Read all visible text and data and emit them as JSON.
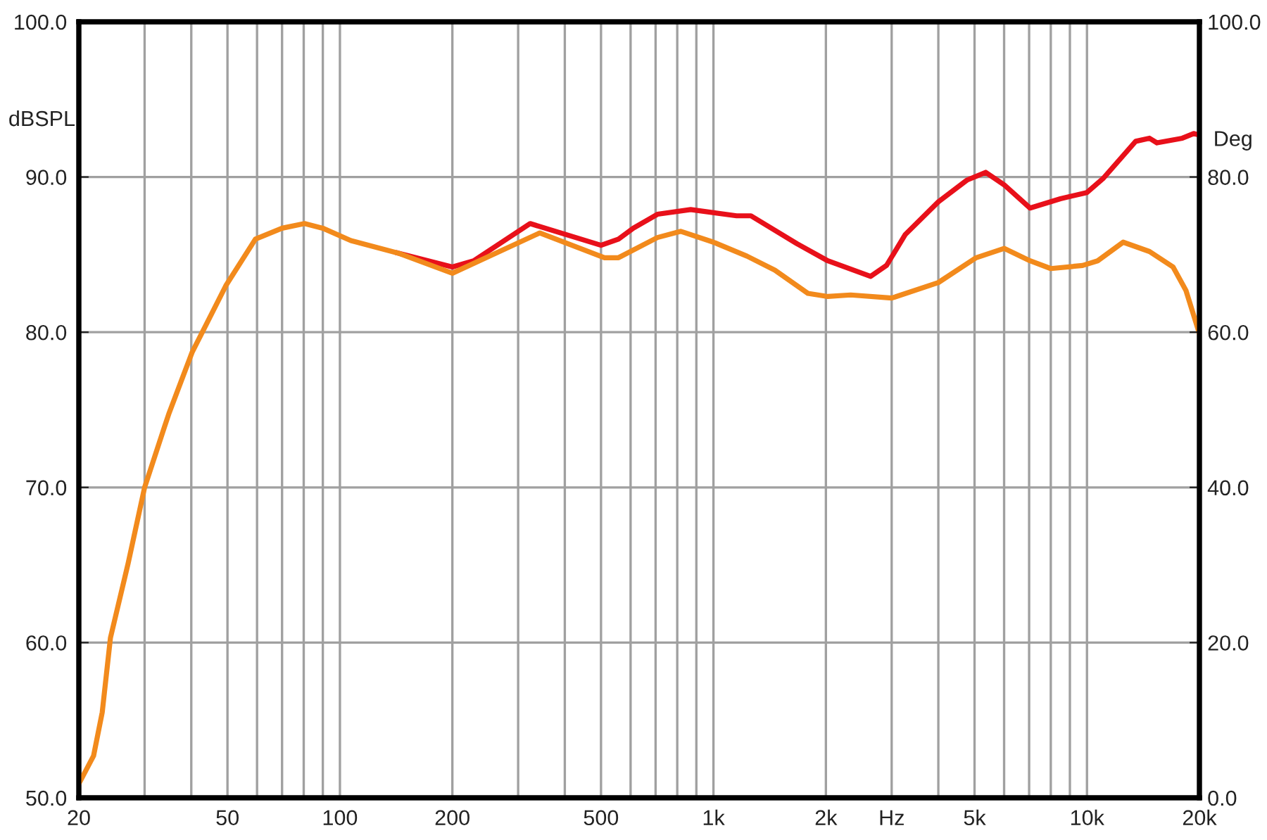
{
  "chart_data": {
    "type": "line",
    "xlabel": null,
    "ylabel": "dBSPL",
    "y2label": "Deg",
    "log": "x",
    "grid": true,
    "marker": "none",
    "line_style": "solid",
    "xlim": [
      20,
      20000
    ],
    "ylim": [
      50,
      100
    ],
    "y2lim": [
      0,
      100
    ],
    "xticks": [
      {
        "value": 20,
        "label": "20"
      },
      {
        "value": 30,
        "label": null
      },
      {
        "value": 40,
        "label": null
      },
      {
        "value": 50,
        "label": "50"
      },
      {
        "value": 60,
        "label": null
      },
      {
        "value": 70,
        "label": null
      },
      {
        "value": 80,
        "label": null
      },
      {
        "value": 90,
        "label": null
      },
      {
        "value": 100,
        "label": "100"
      },
      {
        "value": 200,
        "label": "200"
      },
      {
        "value": 300,
        "label": null
      },
      {
        "value": 400,
        "label": null
      },
      {
        "value": 500,
        "label": "500"
      },
      {
        "value": 600,
        "label": null
      },
      {
        "value": 700,
        "label": null
      },
      {
        "value": 800,
        "label": null
      },
      {
        "value": 900,
        "label": null
      },
      {
        "value": 1000,
        "label": "1k"
      },
      {
        "value": 2000,
        "label": "2k"
      },
      {
        "value": 3000,
        "label": "Hz"
      },
      {
        "value": 4000,
        "label": null
      },
      {
        "value": 5000,
        "label": "5k"
      },
      {
        "value": 6000,
        "label": null
      },
      {
        "value": 7000,
        "label": null
      },
      {
        "value": 8000,
        "label": null
      },
      {
        "value": 9000,
        "label": null
      },
      {
        "value": 10000,
        "label": "10k"
      },
      {
        "value": 20000,
        "label": "20k"
      }
    ],
    "yticks": [
      {
        "value": 50,
        "label": "50.0"
      },
      {
        "value": 60,
        "label": "60.0"
      },
      {
        "value": 70,
        "label": "70.0"
      },
      {
        "value": 80,
        "label": "80.0"
      },
      {
        "value": 90,
        "label": "90.0"
      },
      {
        "value": 100,
        "label": "100.0"
      }
    ],
    "y2ticks": [
      {
        "value": 0,
        "label": "0.0"
      },
      {
        "value": 20,
        "label": "20.0"
      },
      {
        "value": 40,
        "label": "40.0"
      },
      {
        "value": 60,
        "label": "60.0"
      },
      {
        "value": 80,
        "label": "80.0"
      },
      {
        "value": 100,
        "label": "100.0"
      }
    ],
    "series": [
      {
        "color": "#e8101a",
        "x": [
          143,
          200,
          228,
          323,
          500,
          557,
          610,
          708,
          869,
          1153,
          1260,
          1673,
          2024,
          2636,
          2906,
          3264,
          4000,
          4770,
          5355,
          6000,
          7040,
          8490,
          9990,
          11040,
          13500,
          14700,
          15400,
          18000,
          19300,
          20000
        ],
        "values": [
          85.1,
          84.2,
          84.6,
          87.0,
          85.6,
          86.0,
          86.7,
          87.6,
          87.9,
          87.5,
          87.5,
          85.7,
          84.6,
          83.6,
          84.3,
          86.3,
          88.4,
          89.8,
          90.3,
          89.5,
          88.0,
          88.6,
          89.0,
          89.9,
          92.3,
          92.5,
          92.2,
          92.5,
          92.8,
          92.7
        ]
      },
      {
        "color": "#f28a1c",
        "x": [
          20,
          21.9,
          23.1,
          24.3,
          27.1,
          30,
          33.9,
          34.9,
          40.2,
          49.5,
          59.4,
          70,
          80.4,
          90,
          107,
          143,
          200,
          343,
          511,
          557,
          708,
          818,
          1000,
          1230,
          1460,
          1790,
          2024,
          2330,
          3000,
          4000,
          5050,
          6000,
          7040,
          8000,
          9730,
          10680,
          12500,
          14700,
          17000,
          18400,
          20000
        ],
        "values": [
          50.9,
          52.7,
          55.5,
          60.3,
          65.1,
          70.0,
          73.9,
          74.8,
          78.7,
          83.0,
          86.0,
          86.7,
          87.0,
          86.7,
          85.9,
          85.1,
          83.8,
          86.4,
          84.8,
          84.8,
          86.1,
          86.5,
          85.8,
          84.9,
          84.0,
          82.5,
          82.3,
          82.4,
          82.2,
          83.2,
          84.8,
          85.4,
          84.6,
          84.1,
          84.3,
          84.6,
          85.8,
          85.2,
          84.2,
          82.7,
          79.9
        ]
      }
    ]
  }
}
